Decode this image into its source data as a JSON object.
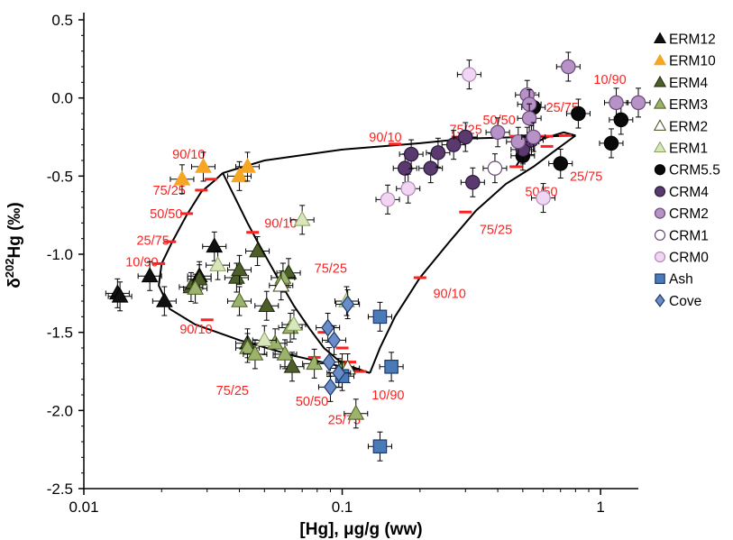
{
  "chart_data": {
    "type": "scatter",
    "title": "",
    "xlabel": "[Hg], μg/g (ww)",
    "ylabel_prefix": "δ",
    "ylabel_sup": "202",
    "ylabel_suffix": "Hg (‰)",
    "xscale": "log",
    "xlim": [
      0.01,
      1.4
    ],
    "ylim": [
      -2.5,
      0.5
    ],
    "xticks": [
      0.01,
      0.1,
      1
    ],
    "xtick_labels": [
      "0.01",
      "0.1",
      "1"
    ],
    "yticks": [
      -2.5,
      -2.0,
      -1.5,
      -1.0,
      -0.5,
      0.0,
      0.5
    ],
    "ytick_labels": [
      "-2.5",
      "-2.0",
      "-1.5",
      "-1.0",
      "-0.5",
      "0.0",
      "0.5"
    ],
    "legend_position": "right",
    "series": [
      {
        "name": "ERM12",
        "marker": "triangle",
        "fill": "#111111",
        "stroke": "#000000",
        "points": [
          [
            0.0135,
            -1.25
          ],
          [
            0.0138,
            -1.27
          ],
          [
            0.018,
            -1.14
          ],
          [
            0.0205,
            -1.3
          ],
          [
            0.028,
            -1.14
          ],
          [
            0.032,
            -0.95
          ]
        ]
      },
      {
        "name": "ERM10",
        "marker": "triangle",
        "fill": "#f5a623",
        "stroke": "#f5a623",
        "points": [
          [
            0.024,
            -0.52
          ],
          [
            0.029,
            -0.44
          ],
          [
            0.04,
            -0.5
          ],
          [
            0.043,
            -0.44
          ]
        ]
      },
      {
        "name": "ERM4",
        "marker": "triangle",
        "fill": "#4d5e2a",
        "stroke": "#1e2a0a",
        "points": [
          [
            0.026,
            -1.21
          ],
          [
            0.028,
            -1.16
          ],
          [
            0.039,
            -1.15
          ],
          [
            0.04,
            -1.1
          ],
          [
            0.043,
            -1.57
          ],
          [
            0.047,
            -0.98
          ],
          [
            0.051,
            -1.33
          ],
          [
            0.062,
            -1.12
          ],
          [
            0.064,
            -1.72
          ]
        ]
      },
      {
        "name": "ERM3",
        "marker": "triangle",
        "fill": "#9bb36a",
        "stroke": "#4a5e22",
        "points": [
          [
            0.027,
            -1.22
          ],
          [
            0.04,
            -1.3
          ],
          [
            0.043,
            -1.6
          ],
          [
            0.046,
            -1.64
          ],
          [
            0.055,
            -1.57
          ],
          [
            0.059,
            -1.15
          ],
          [
            0.06,
            -1.64
          ],
          [
            0.063,
            -1.47
          ],
          [
            0.078,
            -1.7
          ],
          [
            0.1,
            -1.73
          ],
          [
            0.113,
            -2.02
          ]
        ]
      },
      {
        "name": "ERM2",
        "marker": "triangle",
        "fill": "#ffffff",
        "stroke": "#3a4a1a",
        "points": [
          [
            0.058,
            -1.2
          ],
          [
            0.105,
            -1.73
          ]
        ]
      },
      {
        "name": "ERM1",
        "marker": "triangle",
        "fill": "#d8e6bc",
        "stroke": "#8aa060",
        "points": [
          [
            0.033,
            -1.07
          ],
          [
            0.05,
            -1.55
          ],
          [
            0.065,
            -1.45
          ],
          [
            0.07,
            -0.78
          ],
          [
            0.104,
            -1.3
          ]
        ]
      },
      {
        "name": "CRM5.5",
        "marker": "circle",
        "fill": "#0a0a0a",
        "stroke": "#000000",
        "points": [
          [
            0.5,
            -0.37
          ],
          [
            0.52,
            -0.28
          ],
          [
            0.55,
            -0.06
          ],
          [
            0.7,
            -0.42
          ],
          [
            0.82,
            -0.1
          ],
          [
            1.1,
            -0.29
          ],
          [
            1.2,
            -0.14
          ]
        ]
      },
      {
        "name": "CRM4",
        "marker": "circle",
        "fill": "#5a3a6e",
        "stroke": "#2a1a3a",
        "points": [
          [
            0.175,
            -0.45
          ],
          [
            0.185,
            -0.36
          ],
          [
            0.22,
            -0.45
          ],
          [
            0.235,
            -0.35
          ],
          [
            0.27,
            -0.3
          ],
          [
            0.3,
            -0.25
          ],
          [
            0.32,
            -0.54
          ],
          [
            0.5,
            -0.33
          ],
          [
            0.54,
            -0.27
          ]
        ]
      },
      {
        "name": "CRM2",
        "marker": "circle",
        "fill": "#b692c6",
        "stroke": "#6a4a7a",
        "points": [
          [
            0.4,
            -0.22
          ],
          [
            0.48,
            -0.28
          ],
          [
            0.52,
            0.02
          ],
          [
            0.53,
            -0.04
          ],
          [
            0.53,
            -0.13
          ],
          [
            0.55,
            -0.25
          ],
          [
            0.75,
            0.2
          ],
          [
            1.15,
            -0.03
          ],
          [
            1.4,
            -0.03
          ]
        ]
      },
      {
        "name": "CRM1",
        "marker": "circle",
        "fill": "#ffffff",
        "stroke": "#6a4a7a",
        "points": [
          [
            0.39,
            -0.45
          ]
        ]
      },
      {
        "name": "CRM0",
        "marker": "circle",
        "fill": "#f0d6f2",
        "stroke": "#b48ab8",
        "points": [
          [
            0.15,
            -0.65
          ],
          [
            0.18,
            -0.58
          ],
          [
            0.31,
            0.15
          ],
          [
            0.6,
            -0.64
          ]
        ]
      },
      {
        "name": "Ash",
        "marker": "square",
        "fill": "#4a7ab8",
        "stroke": "#1e3a6a",
        "points": [
          [
            0.1,
            -1.78
          ],
          [
            0.14,
            -1.4
          ],
          [
            0.14,
            -2.23
          ],
          [
            0.155,
            -1.72
          ]
        ]
      },
      {
        "name": "Cove",
        "marker": "diamond",
        "fill": "#6a8cc8",
        "stroke": "#1e3a6a",
        "points": [
          [
            0.088,
            -1.47
          ],
          [
            0.089,
            -1.69
          ],
          [
            0.09,
            -1.85
          ],
          [
            0.093,
            -1.55
          ],
          [
            0.097,
            -1.76
          ],
          [
            0.105,
            -1.32
          ]
        ]
      }
    ],
    "mixing_curves": [
      {
        "points": [
          [
            0.0345,
            -0.48
          ],
          [
            0.032,
            -0.53
          ],
          [
            0.0285,
            -0.6
          ],
          [
            0.025,
            -0.75
          ],
          [
            0.022,
            -0.92
          ],
          [
            0.02,
            -1.06
          ],
          [
            0.0195,
            -1.2
          ],
          [
            0.0215,
            -1.35
          ],
          [
            0.027,
            -1.45
          ],
          [
            0.04,
            -1.55
          ],
          [
            0.065,
            -1.65
          ],
          [
            0.1,
            -1.72
          ],
          [
            0.128,
            -1.76
          ]
        ]
      },
      {
        "points": [
          [
            0.0345,
            -0.48
          ],
          [
            0.038,
            -0.62
          ],
          [
            0.043,
            -0.8
          ],
          [
            0.047,
            -0.92
          ],
          [
            0.052,
            -1.05
          ],
          [
            0.058,
            -1.19
          ],
          [
            0.065,
            -1.33
          ],
          [
            0.075,
            -1.48
          ],
          [
            0.085,
            -1.6
          ],
          [
            0.1,
            -1.7
          ],
          [
            0.128,
            -1.76
          ]
        ]
      },
      {
        "points": [
          [
            0.0345,
            -0.48
          ],
          [
            0.05,
            -0.4
          ],
          [
            0.1,
            -0.33
          ],
          [
            0.2,
            -0.29
          ],
          [
            0.3,
            -0.26
          ],
          [
            0.5,
            -0.25
          ],
          [
            0.8,
            -0.24
          ]
        ]
      },
      {
        "points": [
          [
            0.128,
            -1.76
          ],
          [
            0.14,
            -1.6
          ],
          [
            0.16,
            -1.4
          ],
          [
            0.2,
            -1.15
          ],
          [
            0.26,
            -0.92
          ],
          [
            0.33,
            -0.72
          ],
          [
            0.43,
            -0.55
          ],
          [
            0.55,
            -0.44
          ],
          [
            0.65,
            -0.35
          ],
          [
            0.8,
            -0.24
          ]
        ]
      },
      {
        "points": [
          [
            0.8,
            -0.24
          ],
          [
            0.72,
            -0.22
          ],
          [
            0.6,
            -0.26
          ],
          [
            0.52,
            -0.32
          ],
          [
            0.47,
            -0.44
          ]
        ]
      }
    ],
    "mixing_marks": [
      [
        0.031,
        -0.52
      ],
      [
        0.0285,
        -0.59
      ],
      [
        0.025,
        -0.74
      ],
      [
        0.0215,
        -0.92
      ],
      [
        0.0195,
        -1.06
      ],
      [
        0.03,
        -1.42
      ],
      [
        0.05,
        -1.58
      ],
      [
        0.078,
        -1.66
      ],
      [
        0.107,
        -1.69
      ],
      [
        0.117,
        -1.75
      ],
      [
        0.045,
        -0.86
      ],
      [
        0.058,
        -1.2
      ],
      [
        0.085,
        -1.5
      ],
      [
        0.1,
        -1.6
      ],
      [
        0.16,
        -0.295
      ],
      [
        0.28,
        -0.25
      ],
      [
        0.47,
        -0.245
      ],
      [
        0.62,
        -0.245
      ],
      [
        0.73,
        -0.24
      ],
      [
        0.2,
        -1.15
      ],
      [
        0.3,
        -0.73
      ],
      [
        0.47,
        -0.44
      ],
      [
        0.62,
        -0.31
      ]
    ],
    "mixing_labels": [
      {
        "text": "90/10",
        "x": 0.022,
        "y": -0.36
      },
      {
        "text": "75/25",
        "x": 0.0185,
        "y": -0.59
      },
      {
        "text": "50/50",
        "x": 0.018,
        "y": -0.74
      },
      {
        "text": "25/75",
        "x": 0.016,
        "y": -0.91
      },
      {
        "text": "10/90",
        "x": 0.0145,
        "y": -1.05
      },
      {
        "text": "90/10",
        "x": 0.0235,
        "y": -1.48
      },
      {
        "text": "75/25",
        "x": 0.0325,
        "y": -1.87
      },
      {
        "text": "90/10",
        "x": 0.05,
        "y": -0.8
      },
      {
        "text": "75/25",
        "x": 0.078,
        "y": -1.09
      },
      {
        "text": "50/50",
        "x": 0.066,
        "y": -1.94
      },
      {
        "text": "25/75",
        "x": 0.088,
        "y": -2.06
      },
      {
        "text": "10/90",
        "x": 0.13,
        "y": -1.9
      },
      {
        "text": "90/10",
        "x": 0.127,
        "y": -0.25
      },
      {
        "text": "75/25",
        "x": 0.26,
        "y": -0.2
      },
      {
        "text": "50/50",
        "x": 0.35,
        "y": -0.14
      },
      {
        "text": "25/75",
        "x": 0.615,
        "y": -0.06
      },
      {
        "text": "10/90",
        "x": 0.94,
        "y": 0.12
      },
      {
        "text": "50/50",
        "x": 0.51,
        "y": -0.6
      },
      {
        "text": "25/75",
        "x": 0.76,
        "y": -0.5
      },
      {
        "text": "75/25",
        "x": 0.34,
        "y": -0.84
      },
      {
        "text": "90/10",
        "x": 0.225,
        "y": -1.25
      }
    ],
    "colors": {
      "mixing_line": "#000000",
      "mixing_text": "#ff2020",
      "mixing_mark": "#ff2020"
    }
  }
}
